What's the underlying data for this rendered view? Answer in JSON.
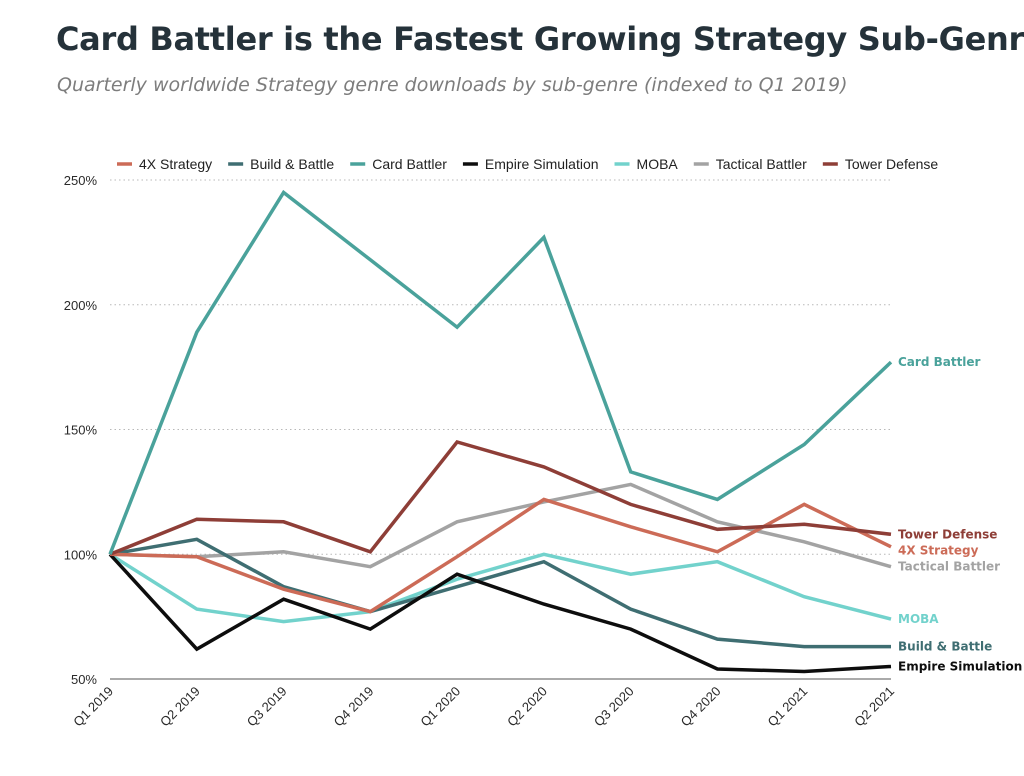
{
  "title": "Card Battler is the Fastest Growing Strategy Sub-Genre",
  "subtitle": "Quarterly worldwide Strategy genre downloads by sub-genre (indexed to Q1 2019)",
  "chart_data": {
    "type": "line",
    "title": "Card Battler is the Fastest Growing Strategy Sub-Genre",
    "subtitle": "Quarterly worldwide Strategy genre downloads by sub-genre (indexed to Q1 2019)",
    "xlabel": "",
    "ylabel": "",
    "ylim": [
      50,
      250
    ],
    "yticks": [
      50,
      100,
      150,
      200,
      250
    ],
    "ytick_labels": [
      "50%",
      "100%",
      "150%",
      "200%",
      "250%"
    ],
    "grid": true,
    "legend_position": "top",
    "categories": [
      "Q1 2019",
      "Q2 2019",
      "Q3 2019",
      "Q4 2019",
      "Q1 2020",
      "Q2 2020",
      "Q3 2020",
      "Q4 2020",
      "Q1 2021",
      "Q2 2021"
    ],
    "series": [
      {
        "name": "4X Strategy",
        "end_label": "4X Strategy",
        "color": "#cc6b57",
        "values": [
          100,
          99,
          86,
          77,
          99,
          122,
          111,
          101,
          120,
          103
        ]
      },
      {
        "name": "Build & Battle",
        "end_label": "Build & Battle",
        "color": "#3f6e72",
        "values": [
          100,
          106,
          87,
          77,
          87,
          97,
          78,
          66,
          63,
          63
        ]
      },
      {
        "name": "Card Battler",
        "end_label": "Card Battler",
        "color": "#4aa29b",
        "values": [
          100,
          189,
          245,
          218,
          191,
          227,
          133,
          122,
          144,
          177
        ]
      },
      {
        "name": "Empire Simulation",
        "end_label": "Empire Simulation",
        "color": "#0d0d0d",
        "values": [
          100,
          62,
          82,
          70,
          92,
          80,
          70,
          54,
          53,
          55
        ]
      },
      {
        "name": "MOBA",
        "end_label": "MOBA",
        "color": "#72d2cc",
        "values": [
          100,
          78,
          73,
          77,
          90,
          100,
          92,
          97,
          83,
          74
        ]
      },
      {
        "name": "Tactical Battler",
        "end_label": "Tactical Battler",
        "color": "#a3a3a3",
        "values": [
          100,
          99,
          101,
          95,
          113,
          121,
          128,
          113,
          105,
          95
        ]
      },
      {
        "name": "Tower Defense",
        "end_label": "Tower Defense",
        "color": "#8e3e37",
        "values": [
          100,
          114,
          113,
          101,
          145,
          135,
          120,
          110,
          112,
          108
        ]
      }
    ]
  }
}
